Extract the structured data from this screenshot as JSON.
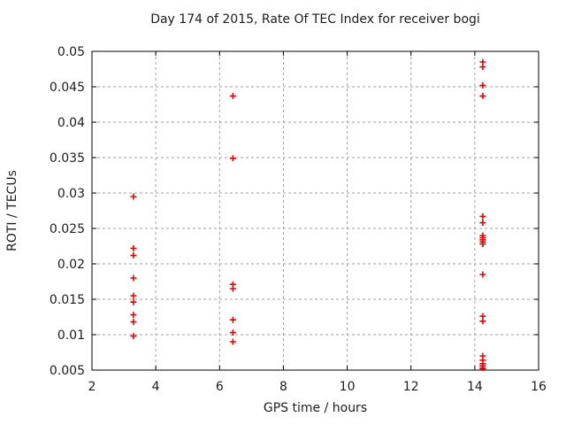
{
  "chart_data": {
    "type": "scatter",
    "title": "Day 174 of 2015, Rate Of TEC Index for receiver bogi",
    "xlabel": "GPS time / hours",
    "ylabel": "ROTI / TECUs",
    "xlim": [
      2,
      16
    ],
    "ylim": [
      0.005,
      0.05
    ],
    "xticks": [
      2,
      4,
      6,
      8,
      10,
      12,
      14,
      16
    ],
    "xtick_labels": [
      "2",
      "4",
      "6",
      "8",
      "10",
      "12",
      "14",
      "16"
    ],
    "yticks": [
      0.005,
      0.01,
      0.015,
      0.02,
      0.025,
      0.03,
      0.035,
      0.04,
      0.045,
      0.05
    ],
    "ytick_labels": [
      "0.005",
      "0.01",
      "0.015",
      "0.02",
      "0.025",
      "0.03",
      "0.035",
      "0.04",
      "0.045",
      "0.05"
    ],
    "grid": true,
    "legend": "none",
    "marker": {
      "shape": "plus",
      "color": "#ee0000",
      "size": 7,
      "stroke_width": 1.6
    },
    "style": {
      "background": "#ffffff",
      "grid_color": "#a0a0a0",
      "border_color": "#000000",
      "text_color": "#1c1c1c"
    },
    "series": [
      {
        "name": "ROTI",
        "points": [
          [
            3.3,
            0.0295
          ],
          [
            3.3,
            0.0222
          ],
          [
            3.3,
            0.0212
          ],
          [
            3.3,
            0.018
          ],
          [
            3.3,
            0.0155
          ],
          [
            3.3,
            0.0146
          ],
          [
            3.3,
            0.0128
          ],
          [
            3.3,
            0.0118
          ],
          [
            3.3,
            0.0098
          ],
          [
            6.42,
            0.0437
          ],
          [
            6.42,
            0.0349
          ],
          [
            6.42,
            0.0171
          ],
          [
            6.42,
            0.0165
          ],
          [
            6.42,
            0.0121
          ],
          [
            6.42,
            0.0103
          ],
          [
            6.42,
            0.009
          ],
          [
            14.25,
            0.0485
          ],
          [
            14.25,
            0.0478
          ],
          [
            14.25,
            0.0452
          ],
          [
            14.25,
            0.0437
          ],
          [
            14.25,
            0.0267
          ],
          [
            14.25,
            0.0258
          ],
          [
            14.25,
            0.024
          ],
          [
            14.25,
            0.0237
          ],
          [
            14.25,
            0.0234
          ],
          [
            14.25,
            0.0231
          ],
          [
            14.25,
            0.0228
          ],
          [
            14.25,
            0.0185
          ],
          [
            14.25,
            0.0126
          ],
          [
            14.25,
            0.0119
          ],
          [
            14.25,
            0.007
          ],
          [
            14.25,
            0.0064
          ],
          [
            14.25,
            0.0059
          ],
          [
            14.25,
            0.0056
          ],
          [
            14.25,
            0.0053
          ],
          [
            14.25,
            0.0051
          ]
        ]
      }
    ]
  }
}
